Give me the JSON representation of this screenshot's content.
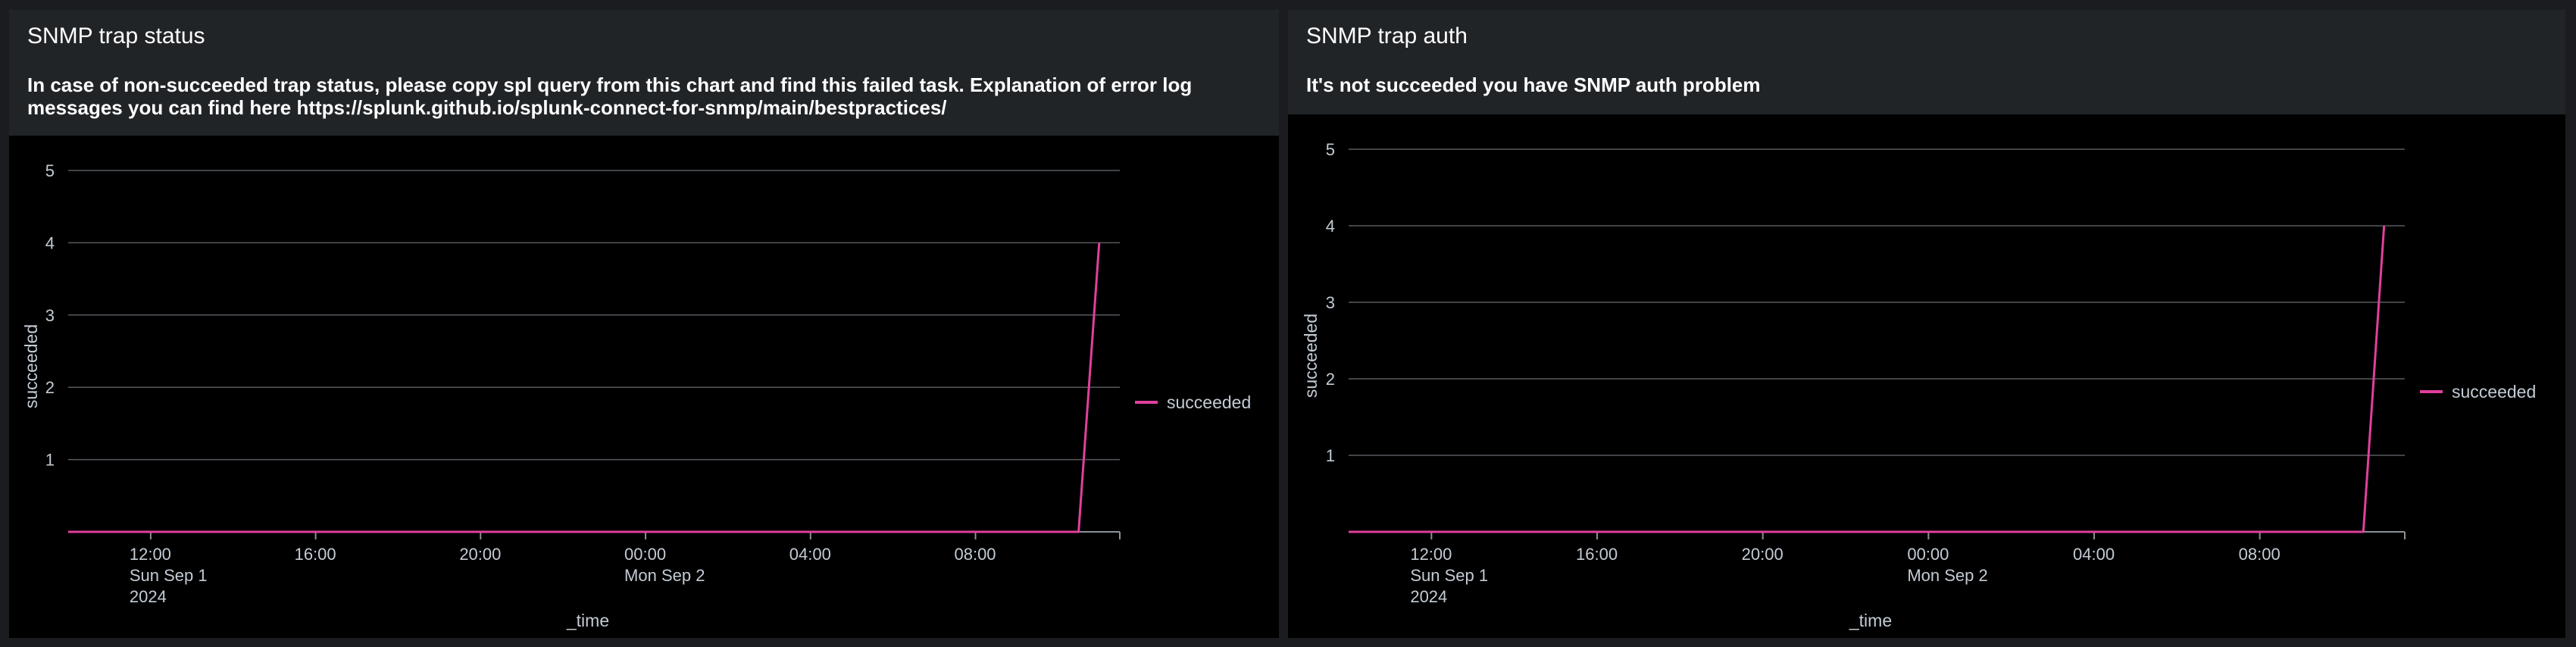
{
  "panels": [
    {
      "title": "SNMP trap status",
      "description": "In case of non-succeeded trap status, please copy spl query from this chart and find this failed task. Explanation of error log messages you can find here https://splunk.github.io/splunk-connect-for-snmp/main/bestpractices/"
    },
    {
      "title": "SNMP trap auth",
      "description": "It's not succeeded you have SNMP auth problem"
    }
  ],
  "chart_data": [
    {
      "type": "line",
      "title": "SNMP trap status",
      "xlabel": "_time",
      "ylabel": "succeeded",
      "x_range_hours": [
        10,
        35.5
      ],
      "ylim": [
        0,
        5
      ],
      "yticks": [
        1,
        2,
        3,
        4,
        5
      ],
      "xticks": [
        {
          "hour": 12,
          "lines": [
            "12:00",
            "Sun Sep 1",
            "2024"
          ]
        },
        {
          "hour": 16,
          "lines": [
            "16:00"
          ]
        },
        {
          "hour": 20,
          "lines": [
            "20:00"
          ]
        },
        {
          "hour": 24,
          "lines": [
            "00:00",
            "Mon Sep 2"
          ]
        },
        {
          "hour": 28,
          "lines": [
            "04:00"
          ]
        },
        {
          "hour": 32,
          "lines": [
            "08:00"
          ]
        }
      ],
      "series": [
        {
          "name": "succeeded",
          "color": "#e0409c",
          "points": [
            [
              10,
              0
            ],
            [
              34.5,
              0
            ],
            [
              35,
              4
            ]
          ]
        }
      ],
      "legend_position": "right",
      "grid": true
    },
    {
      "type": "line",
      "title": "SNMP trap auth",
      "xlabel": "_time",
      "ylabel": "succeeded",
      "x_range_hours": [
        10,
        35.5
      ],
      "ylim": [
        0,
        5
      ],
      "yticks": [
        1,
        2,
        3,
        4,
        5
      ],
      "xticks": [
        {
          "hour": 12,
          "lines": [
            "12:00",
            "Sun Sep 1",
            "2024"
          ]
        },
        {
          "hour": 16,
          "lines": [
            "16:00"
          ]
        },
        {
          "hour": 20,
          "lines": [
            "20:00"
          ]
        },
        {
          "hour": 24,
          "lines": [
            "00:00",
            "Mon Sep 2"
          ]
        },
        {
          "hour": 28,
          "lines": [
            "04:00"
          ]
        },
        {
          "hour": 32,
          "lines": [
            "08:00"
          ]
        }
      ],
      "series": [
        {
          "name": "succeeded",
          "color": "#e0409c",
          "points": [
            [
              10,
              0
            ],
            [
              34.5,
              0
            ],
            [
              35,
              4
            ]
          ]
        }
      ],
      "legend_position": "right",
      "grid": true
    }
  ]
}
